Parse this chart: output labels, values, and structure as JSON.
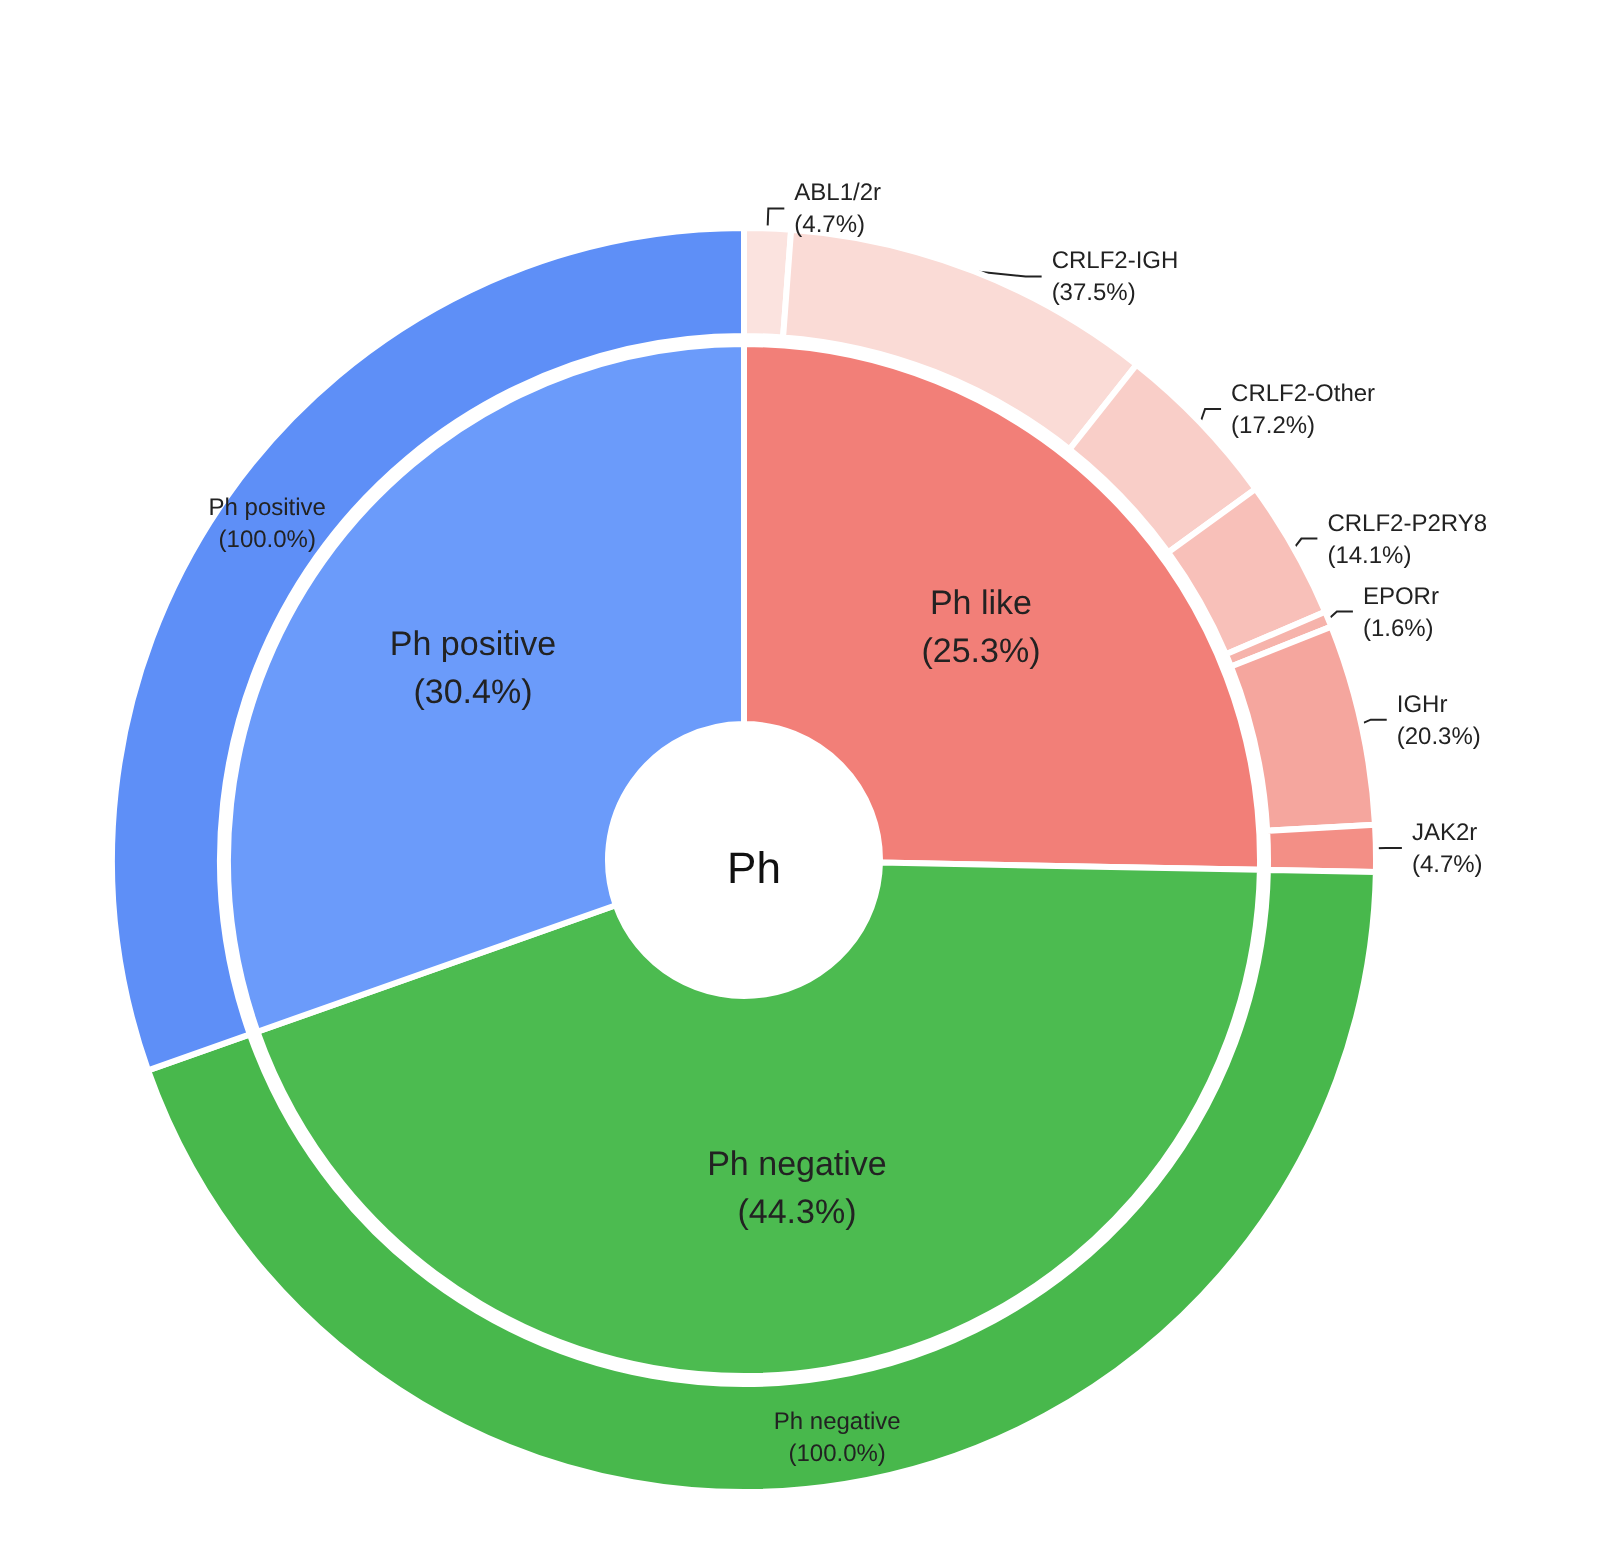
{
  "chart_data": [
    {
      "type": "donut",
      "title": "Ph",
      "categories": [
        "Ph like",
        "Ph negative",
        "Ph positive"
      ],
      "values": [
        25.3,
        44.3,
        30.4
      ],
      "colors": [
        "#f27f78",
        "#4cbb50",
        "#6b9bfa"
      ],
      "value_labels": [
        "(25.3%)",
        "(44.3%)",
        "(30.4%)"
      ]
    },
    {
      "type": "other",
      "categories": [
        "ABL1/2r",
        "CRLF2-IGH",
        "CRLF2-Other",
        "CRLF2-P2RY8",
        "EPORr",
        "IGHr",
        "JAK2r"
      ],
      "values": [
        4.7,
        37.5,
        17.2,
        14.1,
        1.6,
        20.3,
        4.7
      ],
      "colors": [
        "#fbe3df",
        "#fadbd6",
        "#f9cec8",
        "#f8c0b9",
        "#f6b3ab",
        "#f5a69e",
        "#f38f86"
      ],
      "value_labels": [
        "(4.7%)",
        "(37.5%)",
        "(17.2%)",
        "(14.1%)",
        "(1.6%)",
        "(20.3%)",
        "(4.7%)"
      ]
    },
    {
      "type": "other",
      "categories": [
        "Ph negative"
      ],
      "values": [
        100.0
      ],
      "colors": [
        "#48b84c"
      ],
      "value_labels": [
        "(100.0%)"
      ]
    },
    {
      "type": "other",
      "categories": [
        "Ph positive"
      ],
      "values": [
        100.0
      ],
      "colors": [
        "#5e8ff7"
      ],
      "value_labels": [
        "(100.0%)"
      ]
    }
  ]
}
